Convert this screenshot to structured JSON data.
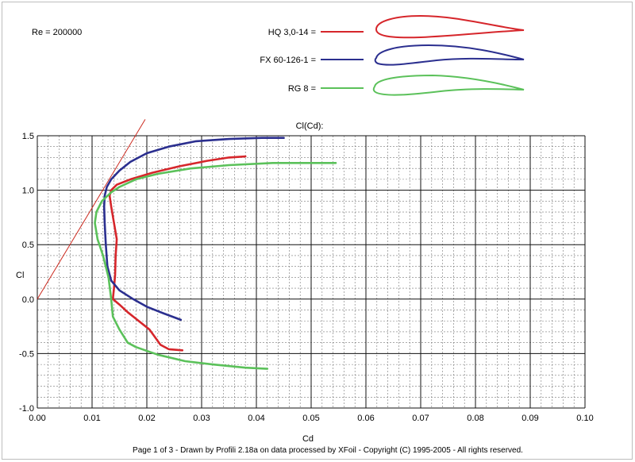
{
  "header": {
    "reynolds_label": "Re = 200000"
  },
  "footer": {
    "text": "Page 1 of 3   -   Drawn by Profili 2.18a on data processed by  XFoil - Copyright (C) 1995-2005 - All rights reserved."
  },
  "colors": {
    "hq": "#d6262b",
    "fx": "#2b2f8f",
    "rg": "#5bc15a",
    "tangent": "#cc2a1f",
    "grid_major": "#111111",
    "grid_minor": "#777777"
  },
  "chart_data": {
    "type": "line",
    "title": "Cl(Cd):",
    "xlabel": "Cd",
    "ylabel": "Cl",
    "xlim": [
      0.0,
      0.1
    ],
    "ylim": [
      -1.0,
      1.5
    ],
    "xticks": [
      "0.00",
      "0.01",
      "0.02",
      "0.03",
      "0.04",
      "0.05",
      "0.06",
      "0.07",
      "0.08",
      "0.09",
      "0.10"
    ],
    "yticks": [
      "-1.0",
      "-0.5",
      "0.0",
      "0.5",
      "1.0",
      "1.5"
    ],
    "grid": true,
    "legend_position": "top-right",
    "series": [
      {
        "name": "HQ 3,0-14 =",
        "color": "#d6262b",
        "points": [
          [
            0.0265,
            -0.47
          ],
          [
            0.024,
            -0.46
          ],
          [
            0.0225,
            -0.42
          ],
          [
            0.0215,
            -0.35
          ],
          [
            0.0205,
            -0.28
          ],
          [
            0.0195,
            -0.24
          ],
          [
            0.018,
            -0.18
          ],
          [
            0.0165,
            -0.12
          ],
          [
            0.015,
            -0.05
          ],
          [
            0.0138,
            0.0
          ],
          [
            0.014,
            0.1
          ],
          [
            0.0142,
            0.22
          ],
          [
            0.0143,
            0.4
          ],
          [
            0.0145,
            0.55
          ],
          [
            0.014,
            0.7
          ],
          [
            0.0135,
            0.85
          ],
          [
            0.0132,
            0.95
          ],
          [
            0.0135,
            1.0
          ],
          [
            0.0145,
            1.05
          ],
          [
            0.017,
            1.1
          ],
          [
            0.021,
            1.16
          ],
          [
            0.026,
            1.22
          ],
          [
            0.031,
            1.27
          ],
          [
            0.035,
            1.3
          ],
          [
            0.038,
            1.31
          ]
        ]
      },
      {
        "name": "FX 60-126-1 =",
        "color": "#2b2f8f",
        "points": [
          [
            0.0262,
            -0.19
          ],
          [
            0.023,
            -0.13
          ],
          [
            0.02,
            -0.07
          ],
          [
            0.0175,
            0.0
          ],
          [
            0.015,
            0.08
          ],
          [
            0.0135,
            0.17
          ],
          [
            0.0128,
            0.3
          ],
          [
            0.0125,
            0.5
          ],
          [
            0.0123,
            0.7
          ],
          [
            0.0122,
            0.85
          ],
          [
            0.0123,
            0.95
          ],
          [
            0.0127,
            1.03
          ],
          [
            0.0135,
            1.1
          ],
          [
            0.015,
            1.18
          ],
          [
            0.017,
            1.26
          ],
          [
            0.02,
            1.34
          ],
          [
            0.024,
            1.4
          ],
          [
            0.029,
            1.45
          ],
          [
            0.035,
            1.47
          ],
          [
            0.041,
            1.48
          ],
          [
            0.045,
            1.48
          ]
        ]
      },
      {
        "name": "RG 8 =",
        "color": "#5bc15a",
        "points": [
          [
            0.042,
            -0.64
          ],
          [
            0.038,
            -0.63
          ],
          [
            0.032,
            -0.6
          ],
          [
            0.027,
            -0.57
          ],
          [
            0.022,
            -0.51
          ],
          [
            0.018,
            -0.44
          ],
          [
            0.0165,
            -0.4
          ],
          [
            0.015,
            -0.28
          ],
          [
            0.0138,
            -0.16
          ],
          [
            0.0135,
            0.0
          ],
          [
            0.013,
            0.2
          ],
          [
            0.012,
            0.4
          ],
          [
            0.011,
            0.55
          ],
          [
            0.0105,
            0.7
          ],
          [
            0.0108,
            0.8
          ],
          [
            0.0118,
            0.9
          ],
          [
            0.0135,
            0.98
          ],
          [
            0.015,
            1.03
          ],
          [
            0.018,
            1.1
          ],
          [
            0.022,
            1.15
          ],
          [
            0.028,
            1.2
          ],
          [
            0.035,
            1.23
          ],
          [
            0.043,
            1.25
          ],
          [
            0.05,
            1.25
          ],
          [
            0.0545,
            1.25
          ]
        ]
      }
    ],
    "tangent_line": {
      "color": "#cc2a1f",
      "points": [
        [
          0.0,
          0.0
        ],
        [
          0.0197,
          1.65
        ]
      ]
    }
  }
}
